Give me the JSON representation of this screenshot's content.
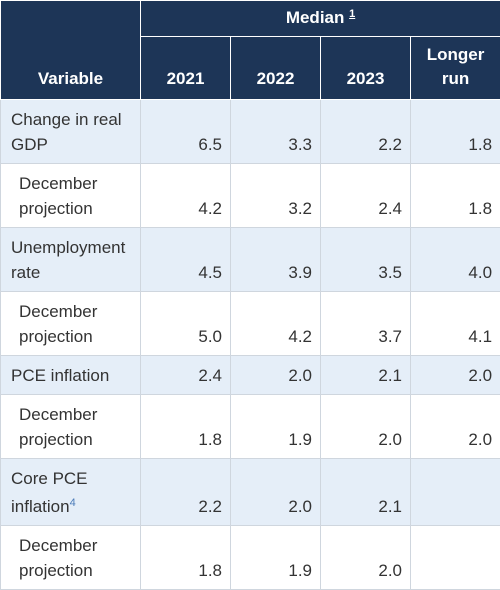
{
  "header": {
    "variable": "Variable",
    "median": "Median",
    "median_note": "1",
    "columns": [
      "2021",
      "2022",
      "2023",
      "Longer run"
    ]
  },
  "rows": [
    {
      "label": "Change in real GDP",
      "values": [
        "6.5",
        "3.3",
        "2.2",
        "1.8"
      ]
    },
    {
      "label": "December projection",
      "values": [
        "4.2",
        "3.2",
        "2.4",
        "1.8"
      ]
    },
    {
      "label": "Unemployment rate",
      "values": [
        "4.5",
        "3.9",
        "3.5",
        "4.0"
      ]
    },
    {
      "label": "December projection",
      "values": [
        "5.0",
        "4.2",
        "3.7",
        "4.1"
      ]
    },
    {
      "label": "PCE inflation",
      "values": [
        "2.4",
        "2.0",
        "2.1",
        "2.0"
      ]
    },
    {
      "label": "December projection",
      "values": [
        "1.8",
        "1.9",
        "2.0",
        "2.0"
      ]
    },
    {
      "label": "Core PCE inflation",
      "note": "4",
      "values": [
        "2.2",
        "2.0",
        "2.1",
        null
      ]
    },
    {
      "label": "December projection",
      "values": [
        "1.8",
        "1.9",
        "2.0",
        null
      ]
    }
  ]
}
